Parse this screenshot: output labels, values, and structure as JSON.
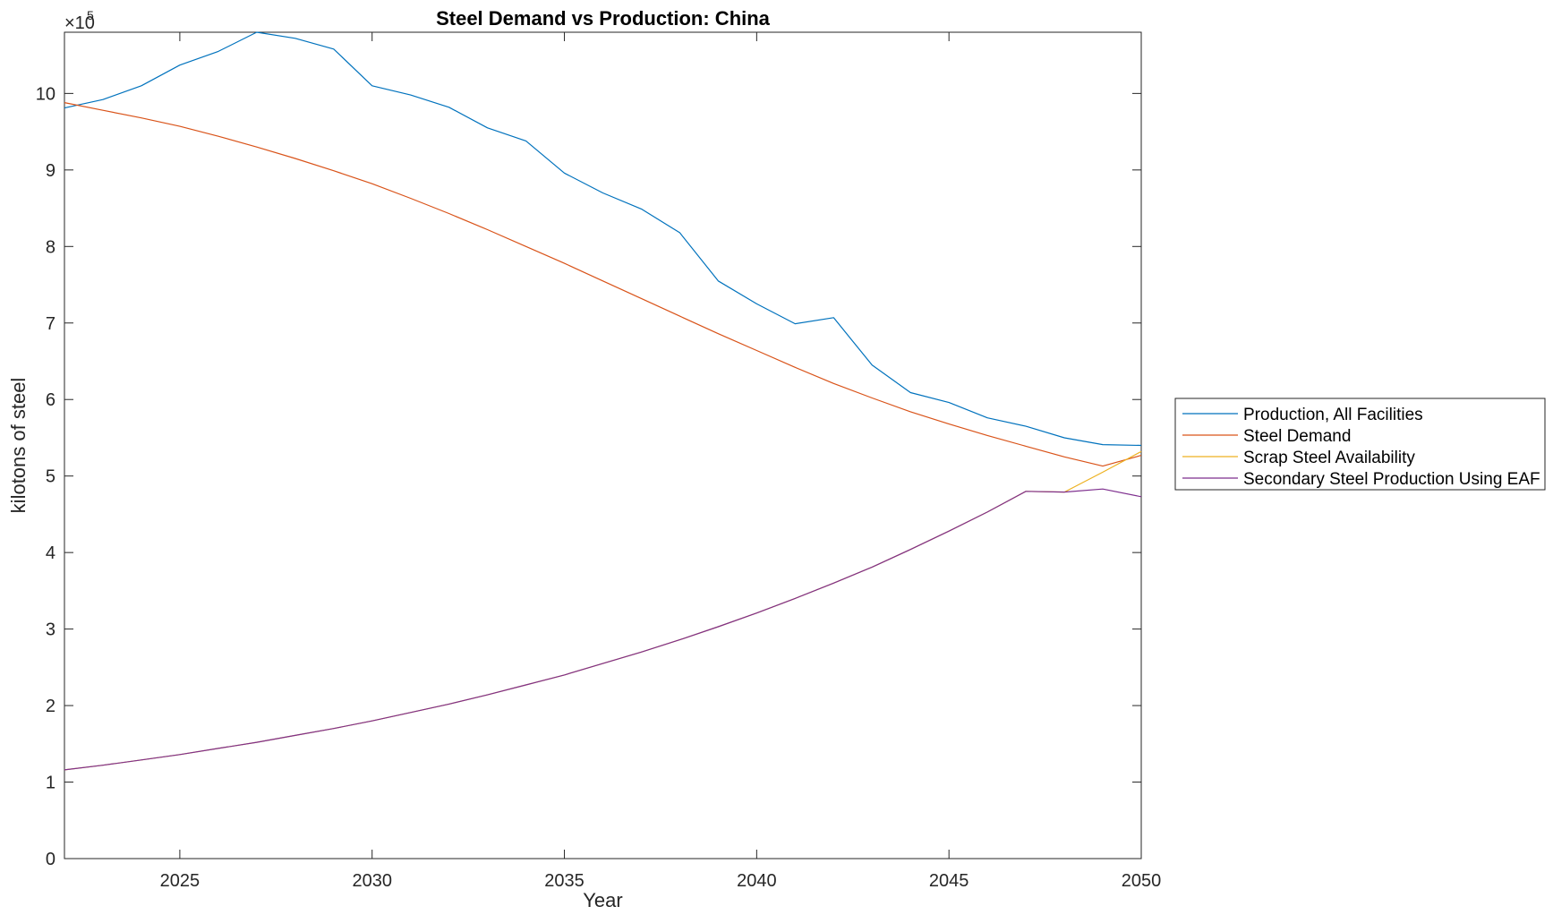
{
  "chart_data": {
    "type": "line",
    "title": "Steel Demand vs Production: China",
    "xlabel": "Year",
    "ylabel": "kilotons of steel",
    "exponent_label": "×10",
    "exponent_power": "5",
    "xlim": [
      2022,
      2050
    ],
    "ylim": [
      0,
      1080000
    ],
    "xticks": [
      2025,
      2030,
      2035,
      2040,
      2045,
      2050
    ],
    "xtick_labels": [
      "2025",
      "2030",
      "2035",
      "2040",
      "2045",
      "2050"
    ],
    "yticks": [
      0,
      100000,
      200000,
      300000,
      400000,
      500000,
      600000,
      700000,
      800000,
      900000,
      1000000
    ],
    "ytick_labels": [
      "0",
      "1",
      "2",
      "3",
      "4",
      "5",
      "6",
      "7",
      "8",
      "9",
      "10"
    ],
    "grid": false,
    "legend_position": "outside-right",
    "x": [
      2022,
      2023,
      2024,
      2025,
      2026,
      2027,
      2028,
      2029,
      2030,
      2031,
      2032,
      2033,
      2034,
      2035,
      2036,
      2037,
      2038,
      2039,
      2040,
      2041,
      2042,
      2043,
      2044,
      2045,
      2046,
      2047,
      2048,
      2049,
      2050
    ],
    "series": [
      {
        "name": "Production, All Facilities",
        "color": "#0072BD",
        "values": [
          981000,
          992000,
          1010000,
          1037000,
          1055000,
          1080000,
          1072000,
          1058000,
          1010000,
          998000,
          982000,
          955000,
          938000,
          896000,
          870000,
          849000,
          818000,
          755000,
          725000,
          699000,
          707000,
          645000,
          609000,
          596000,
          576000,
          565000,
          550000,
          541000,
          540000
        ]
      },
      {
        "name": "Steel Demand",
        "color": "#D95319",
        "values": [
          988000,
          978000,
          968000,
          957000,
          944000,
          930000,
          915000,
          899000,
          882000,
          863000,
          843000,
          822000,
          800000,
          778000,
          755000,
          732000,
          709000,
          686000,
          664000,
          642000,
          621000,
          602000,
          584000,
          568000,
          553000,
          539000,
          525000,
          513000,
          527000
        ]
      },
      {
        "name": "Scrap Steel Availability",
        "color": "#EDB120",
        "values": [
          116000,
          122000,
          129000,
          136000,
          144000,
          152000,
          161000,
          170000,
          180000,
          191000,
          202000,
          214000,
          227000,
          240000,
          255000,
          270000,
          286000,
          303000,
          321000,
          340000,
          360000,
          381000,
          404000,
          428000,
          453000,
          480000,
          479000,
          505000,
          532000
        ]
      },
      {
        "name": "Secondary Steel Production Using EAF",
        "color": "#7E2F8E",
        "values": [
          116000,
          122000,
          129000,
          136000,
          144000,
          152000,
          161000,
          170000,
          180000,
          191000,
          202000,
          214000,
          227000,
          240000,
          255000,
          270000,
          286000,
          303000,
          321000,
          340000,
          360000,
          381000,
          404000,
          428000,
          453000,
          480000,
          479000,
          483000,
          473000
        ]
      }
    ]
  }
}
